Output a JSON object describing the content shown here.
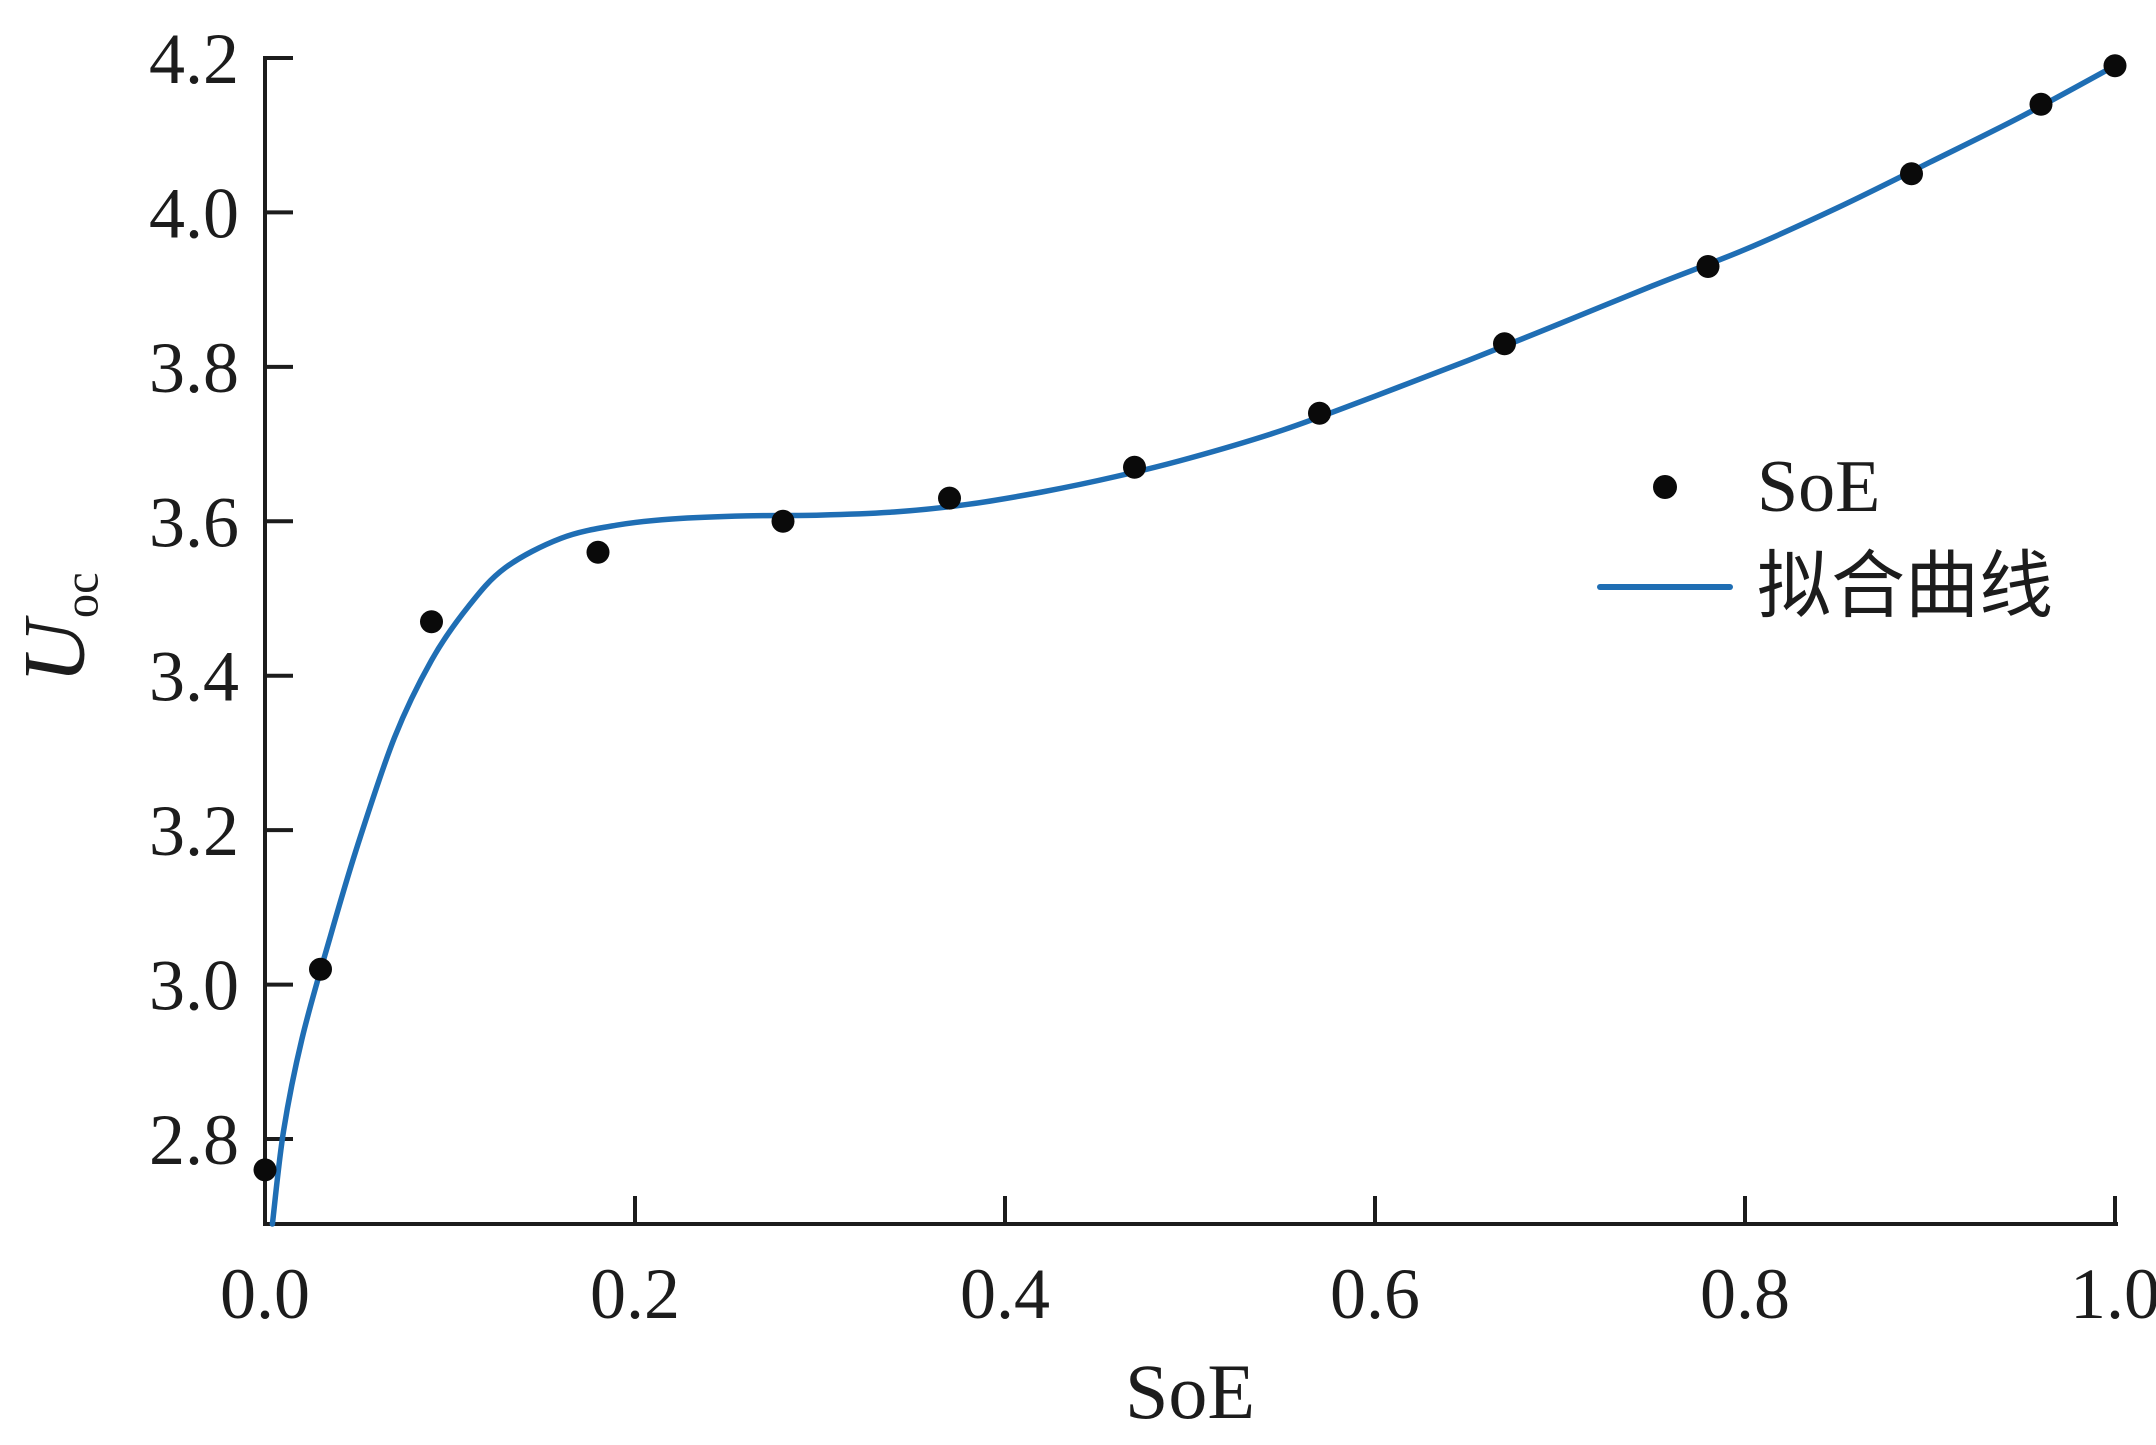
{
  "chart_data": {
    "type": "scatter",
    "title": "",
    "xlabel": "SoE",
    "ylabel": "U_oc",
    "ylabel_main": "U",
    "ylabel_sub": "oc",
    "xlim": [
      0.0,
      1.0
    ],
    "ylim": [
      2.69,
      4.2
    ],
    "xticks": [
      0.0,
      0.2,
      0.4,
      0.6,
      0.8,
      1.0
    ],
    "yticks": [
      2.8,
      3.0,
      3.2,
      3.4,
      3.6,
      3.8,
      4.0,
      4.2
    ],
    "grid": false,
    "colors": {
      "curve": "#1f6eb4",
      "marker": "#0a0a0a",
      "axis": "#1c1c1c"
    },
    "legend": {
      "position": "center-right",
      "entries": [
        {
          "label": "SoE",
          "marker": "dot"
        },
        {
          "label": "拟合曲线",
          "marker": "line"
        }
      ]
    },
    "series": [
      {
        "name": "SoE",
        "type": "scatter",
        "points": [
          [
            0.0,
            2.76
          ],
          [
            0.03,
            3.02
          ],
          [
            0.09,
            3.47
          ],
          [
            0.18,
            3.56
          ],
          [
            0.28,
            3.6
          ],
          [
            0.37,
            3.63
          ],
          [
            0.47,
            3.67
          ],
          [
            0.57,
            3.74
          ],
          [
            0.67,
            3.83
          ],
          [
            0.78,
            3.93
          ],
          [
            0.89,
            4.05
          ],
          [
            0.96,
            4.14
          ],
          [
            1.0,
            4.19
          ]
        ]
      },
      {
        "name": "拟合曲线",
        "type": "line",
        "points": [
          [
            0.004,
            2.69
          ],
          [
            0.01,
            2.81
          ],
          [
            0.02,
            2.93
          ],
          [
            0.035,
            3.06
          ],
          [
            0.05,
            3.18
          ],
          [
            0.07,
            3.32
          ],
          [
            0.09,
            3.42
          ],
          [
            0.11,
            3.49
          ],
          [
            0.13,
            3.54
          ],
          [
            0.16,
            3.578
          ],
          [
            0.19,
            3.595
          ],
          [
            0.22,
            3.603
          ],
          [
            0.26,
            3.607
          ],
          [
            0.3,
            3.608
          ],
          [
            0.34,
            3.612
          ],
          [
            0.38,
            3.622
          ],
          [
            0.42,
            3.638
          ],
          [
            0.46,
            3.658
          ],
          [
            0.5,
            3.682
          ],
          [
            0.55,
            3.718
          ],
          [
            0.6,
            3.762
          ],
          [
            0.65,
            3.808
          ],
          [
            0.7,
            3.856
          ],
          [
            0.75,
            3.905
          ],
          [
            0.8,
            3.952
          ],
          [
            0.85,
            4.006
          ],
          [
            0.9,
            4.065
          ],
          [
            0.95,
            4.125
          ],
          [
            1.0,
            4.19
          ]
        ]
      }
    ]
  }
}
